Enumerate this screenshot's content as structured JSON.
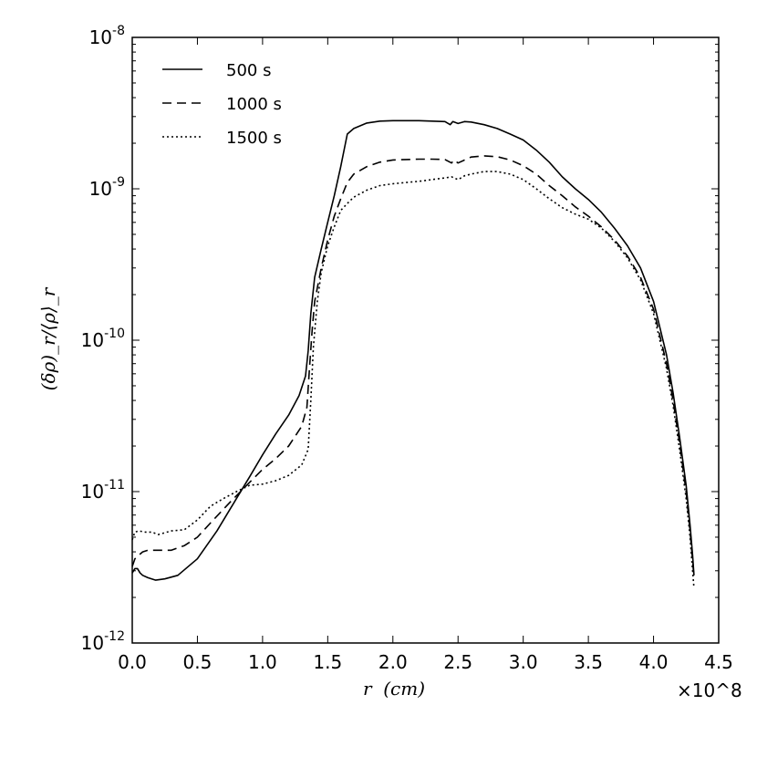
{
  "chart_data": {
    "type": "line",
    "title": "",
    "xlabel": "r  (cm)",
    "ylabel": "(δρ)_r/⟨ρ⟩_r",
    "x_scale_label": "×10^8",
    "x_scale_factor": 100000000,
    "xlim": [
      0,
      4.5
    ],
    "ylim": [
      1e-12,
      1e-08
    ],
    "y_scale": "log",
    "grid": false,
    "legend_position": "top-left",
    "x_ticks": [
      0.0,
      0.5,
      1.0,
      1.5,
      2.0,
      2.5,
      3.0,
      3.5,
      4.0,
      4.5
    ],
    "x_tick_labels": [
      "0.0",
      "0.5",
      "1.0",
      "1.5",
      "2.0",
      "2.5",
      "3.0",
      "3.5",
      "4.0",
      "4.5"
    ],
    "y_ticks": [
      -12,
      -11,
      -10,
      -9,
      -8
    ],
    "y_tick_labels": [
      {
        "base": "10",
        "exp": "-12"
      },
      {
        "base": "10",
        "exp": "-11"
      },
      {
        "base": "10",
        "exp": "-10"
      },
      {
        "base": "10",
        "exp": "-9"
      },
      {
        "base": "10",
        "exp": "-8"
      }
    ],
    "series": [
      {
        "name": "500 s",
        "style": "solid",
        "x": [
          0.0,
          0.02,
          0.04,
          0.06,
          0.08,
          0.12,
          0.18,
          0.25,
          0.35,
          0.5,
          0.65,
          0.8,
          0.9,
          1.0,
          1.1,
          1.2,
          1.28,
          1.33,
          1.35,
          1.37,
          1.4,
          1.45,
          1.5,
          1.55,
          1.6,
          1.65,
          1.7,
          1.8,
          1.9,
          2.0,
          2.1,
          2.2,
          2.3,
          2.4,
          2.44,
          2.46,
          2.5,
          2.55,
          2.6,
          2.7,
          2.8,
          2.9,
          3.0,
          3.1,
          3.2,
          3.3,
          3.4,
          3.5,
          3.6,
          3.7,
          3.8,
          3.9,
          4.0,
          4.1,
          4.15,
          4.2,
          4.25,
          4.28,
          4.3,
          4.31
        ],
        "y": [
          2.9e-12,
          3.1e-12,
          3.1e-12,
          2.9e-12,
          2.8e-12,
          2.7e-12,
          2.6e-12,
          2.65e-12,
          2.8e-12,
          3.6e-12,
          5.5e-12,
          9e-12,
          1.25e-11,
          1.75e-11,
          2.4e-11,
          3.2e-11,
          4.3e-11,
          5.8e-11,
          8.5e-11,
          1.5e-10,
          2.6e-10,
          4e-10,
          6e-10,
          9e-10,
          1.4e-09,
          2.3e-09,
          2.5e-09,
          2.72e-09,
          2.8e-09,
          2.82e-09,
          2.82e-09,
          2.82e-09,
          2.8e-09,
          2.78e-09,
          2.65e-09,
          2.78e-09,
          2.7e-09,
          2.78e-09,
          2.76e-09,
          2.65e-09,
          2.5e-09,
          2.3e-09,
          2.1e-09,
          1.8e-09,
          1.5e-09,
          1.2e-09,
          1e-09,
          8.5e-10,
          7e-10,
          5.5e-10,
          4.2e-10,
          3e-10,
          1.8e-10,
          8e-11,
          4.5e-11,
          2.3e-11,
          1.1e-11,
          6e-12,
          3.8e-12,
          2.8e-12
        ]
      },
      {
        "name": "1000 s",
        "style": "dashed",
        "x": [
          0.0,
          0.02,
          0.05,
          0.08,
          0.12,
          0.2,
          0.3,
          0.4,
          0.5,
          0.6,
          0.75,
          0.9,
          1.0,
          1.1,
          1.2,
          1.3,
          1.34,
          1.36,
          1.38,
          1.4,
          1.45,
          1.5,
          1.55,
          1.6,
          1.65,
          1.7,
          1.8,
          1.9,
          2.0,
          2.1,
          2.2,
          2.3,
          2.4,
          2.45,
          2.47,
          2.5,
          2.55,
          2.6,
          2.7,
          2.8,
          2.9,
          3.0,
          3.1,
          3.2,
          3.3,
          3.4,
          3.5,
          3.6,
          3.7,
          3.8,
          3.9,
          4.0,
          4.1,
          4.15,
          4.2,
          4.25,
          4.28,
          4.3,
          4.31
        ],
        "y": [
          3.2e-12,
          3.6e-12,
          3.8e-12,
          4e-12,
          4.1e-12,
          4.1e-12,
          4.1e-12,
          4.4e-12,
          5e-12,
          6.2e-12,
          8.5e-12,
          1.15e-11,
          1.4e-11,
          1.65e-11,
          2e-11,
          2.7e-11,
          3.6e-11,
          6.5e-11,
          1.15e-10,
          1.8e-10,
          3e-10,
          4.6e-10,
          6.6e-10,
          8.6e-10,
          1.1e-09,
          1.25e-09,
          1.4e-09,
          1.5e-09,
          1.55e-09,
          1.56e-09,
          1.57e-09,
          1.57e-09,
          1.56e-09,
          1.48e-09,
          1.55e-09,
          1.48e-09,
          1.55e-09,
          1.62e-09,
          1.65e-09,
          1.63e-09,
          1.55e-09,
          1.42e-09,
          1.25e-09,
          1.05e-09,
          9e-10,
          7.6e-10,
          6.6e-10,
          5.6e-10,
          4.6e-10,
          3.6e-10,
          2.6e-10,
          1.6e-10,
          7e-11,
          4e-11,
          2.1e-11,
          1e-11,
          5.5e-12,
          3.5e-12,
          2.7e-12
        ]
      },
      {
        "name": "1500 s",
        "style": "dotted",
        "x": [
          0.0,
          0.02,
          0.05,
          0.1,
          0.15,
          0.2,
          0.3,
          0.4,
          0.5,
          0.6,
          0.7,
          0.8,
          0.9,
          1.0,
          1.1,
          1.2,
          1.3,
          1.35,
          1.37,
          1.39,
          1.42,
          1.45,
          1.5,
          1.55,
          1.6,
          1.65,
          1.7,
          1.8,
          1.9,
          2.0,
          2.1,
          2.2,
          2.3,
          2.4,
          2.45,
          2.5,
          2.55,
          2.6,
          2.7,
          2.8,
          2.9,
          3.0,
          3.1,
          3.2,
          3.3,
          3.4,
          3.5,
          3.6,
          3.7,
          3.8,
          3.9,
          4.0,
          4.1,
          4.15,
          4.2,
          4.25,
          4.28,
          4.3,
          4.31
        ],
        "y": [
          4.8e-12,
          5.4e-12,
          5.5e-12,
          5.4e-12,
          5.4e-12,
          5.2e-12,
          5.5e-12,
          5.6e-12,
          6.5e-12,
          8e-12,
          9e-12,
          1e-11,
          1.1e-11,
          1.12e-11,
          1.18e-11,
          1.28e-11,
          1.5e-11,
          1.9e-11,
          4e-11,
          9e-11,
          1.8e-10,
          2.8e-10,
          4.2e-10,
          5.6e-10,
          7.2e-10,
          8e-10,
          8.8e-10,
          9.8e-10,
          1.05e-09,
          1.08e-09,
          1.1e-09,
          1.12e-09,
          1.15e-09,
          1.18e-09,
          1.2e-09,
          1.15e-09,
          1.22e-09,
          1.25e-09,
          1.3e-09,
          1.3e-09,
          1.25e-09,
          1.15e-09,
          1e-09,
          8.6e-10,
          7.5e-10,
          6.8e-10,
          6.3e-10,
          5.5e-10,
          4.5e-10,
          3.5e-10,
          2.5e-10,
          1.5e-10,
          6.5e-11,
          3.7e-11,
          1.9e-11,
          9e-12,
          5e-12,
          3e-12,
          2.3e-12
        ]
      }
    ]
  }
}
